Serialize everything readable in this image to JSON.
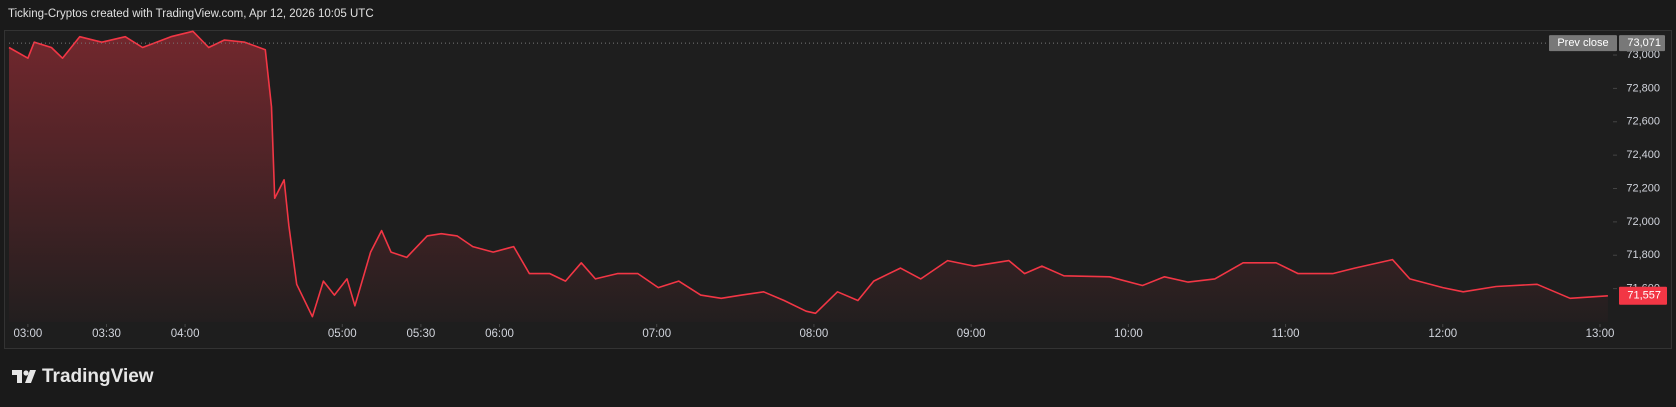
{
  "header": "Ticking-Cryptos created with TradingView.com, Apr 12, 2026 10:05 UTC",
  "branding": "TradingView",
  "chart_data": {
    "type": "line",
    "color": "#f23645",
    "x": [
      2.88,
      3.0,
      3.04,
      3.15,
      3.22,
      3.33,
      3.47,
      3.62,
      3.73,
      3.91,
      4.05,
      4.15,
      4.25,
      4.38,
      4.51,
      4.55,
      4.57,
      4.63,
      4.66,
      4.71,
      4.81,
      4.88,
      4.95,
      5.03,
      5.08,
      5.18,
      5.25,
      5.31,
      5.41,
      5.54,
      5.63,
      5.73,
      5.83,
      5.96,
      6.09,
      6.19,
      6.32,
      6.42,
      6.52,
      6.61,
      6.75,
      6.88,
      7.01,
      7.14,
      7.28,
      7.41,
      7.54,
      7.68,
      7.81,
      7.95,
      8.01,
      8.15,
      8.28,
      8.38,
      8.55,
      8.68,
      8.85,
      9.02,
      9.24,
      9.34,
      9.45,
      9.59,
      9.88,
      10.09,
      10.23,
      10.38,
      10.55,
      10.73,
      10.94,
      11.08,
      11.3,
      11.44,
      11.68,
      11.79,
      12.0,
      12.13,
      12.34,
      12.6,
      12.81,
      13.05
    ],
    "values": [
      73045,
      72981,
      73077,
      73045,
      72981,
      73110,
      73077,
      73110,
      73045,
      73110,
      73142,
      73045,
      73090,
      73077,
      73032,
      72690,
      72142,
      72252,
      71981,
      71626,
      71432,
      71645,
      71561,
      71658,
      71497,
      71819,
      71948,
      71819,
      71787,
      71916,
      71929,
      71916,
      71852,
      71819,
      71852,
      71690,
      71690,
      71645,
      71755,
      71658,
      71690,
      71690,
      71606,
      71645,
      71561,
      71542,
      71561,
      71581,
      71529,
      71465,
      71452,
      71581,
      71529,
      71645,
      71723,
      71658,
      71768,
      71735,
      71768,
      71690,
      71735,
      71677,
      71671,
      71619,
      71671,
      71639,
      71658,
      71755,
      71755,
      71690,
      71690,
      71723,
      71774,
      71658,
      71606,
      71581,
      71613,
      71626,
      71542,
      71557
    ],
    "xlim": [
      2.88,
      13.07
    ],
    "xticks": [
      {
        "value": 3,
        "label": "03:00"
      },
      {
        "value": 3.5,
        "label": "03:30"
      },
      {
        "value": 4,
        "label": "04:00"
      },
      {
        "value": 5,
        "label": "05:00"
      },
      {
        "value": 5.5,
        "label": "05:30"
      },
      {
        "value": 6,
        "label": "06:00"
      },
      {
        "value": 7,
        "label": "07:00"
      },
      {
        "value": 8,
        "label": "08:00"
      },
      {
        "value": 9,
        "label": "09:00"
      },
      {
        "value": 10,
        "label": "10:00"
      },
      {
        "value": 11,
        "label": "11:00"
      },
      {
        "value": 12,
        "label": "12:00"
      },
      {
        "value": 13,
        "label": "13:00"
      }
    ],
    "ylim": [
      71400,
      73120
    ],
    "yticks": [
      {
        "value": 71600,
        "label": "71,600"
      },
      {
        "value": 71800,
        "label": "71,800"
      },
      {
        "value": 72000,
        "label": "72,000"
      },
      {
        "value": 72200,
        "label": "72,200"
      },
      {
        "value": 72400,
        "label": "72,400"
      },
      {
        "value": 72600,
        "label": "72,600"
      },
      {
        "value": 72800,
        "label": "72,800"
      },
      {
        "value": 73000,
        "label": "73,000"
      }
    ],
    "prev_close": {
      "name": "Prev close",
      "value": 73071,
      "label": "73,071"
    },
    "last_price": {
      "value": 71557,
      "label": "71,557"
    }
  }
}
